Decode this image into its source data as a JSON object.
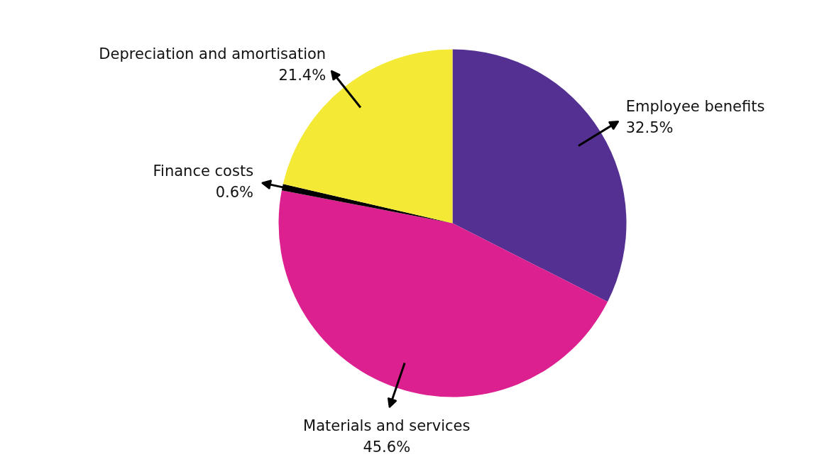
{
  "chart_data": {
    "type": "pie",
    "categories": [
      "Employee benefits",
      "Materials and services",
      "Finance costs",
      "Depreciation and amortisation"
    ],
    "values": [
      32.5,
      45.6,
      0.6,
      21.4
    ],
    "colors": [
      "#543092",
      "#dd208f",
      "#000000",
      "#f4ea35"
    ],
    "value_labels": [
      "32.5%",
      "45.6%",
      "0.6%",
      "21.4%"
    ]
  }
}
